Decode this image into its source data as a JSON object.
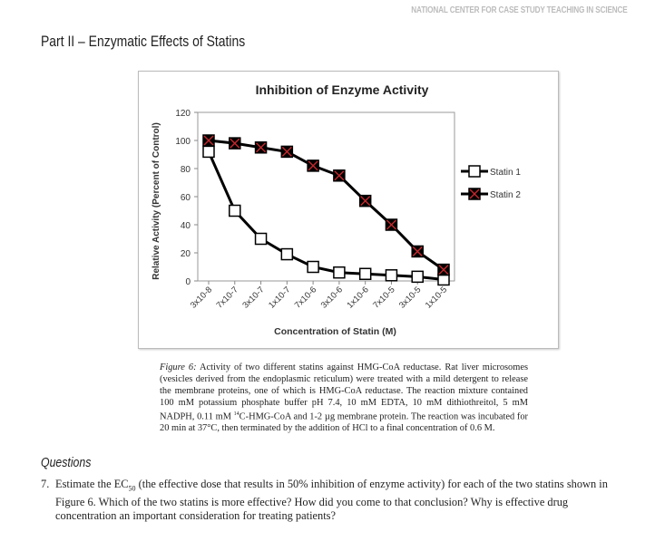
{
  "header": {
    "banner": "NATIONAL CENTER FOR CASE STUDY TEACHING IN SCIENCE",
    "title": "Part II – Enzymatic Effects of Statins"
  },
  "chart_data": {
    "type": "line",
    "title": "Inhibition of Enzyme Activity",
    "xlabel": "Concentration of Statin (M)",
    "ylabel": "Relative Activity (Percent of Control)",
    "categories": [
      "3x10-8",
      "7x10-7",
      "3x10-7",
      "1x10-7",
      "7x10-6",
      "3x10-6",
      "1x10-6",
      "7x10-5",
      "3x10-5",
      "1x10-5"
    ],
    "ylim": [
      0,
      120
    ],
    "yticks": [
      0,
      20,
      40,
      60,
      80,
      100,
      120
    ],
    "grid": false,
    "legend": "right",
    "series": [
      {
        "name": "Statin 1",
        "values": [
          92,
          50,
          30,
          19,
          10,
          6,
          5,
          4,
          3,
          1
        ],
        "marker": "open-square",
        "color": "#000000"
      },
      {
        "name": "Statin 2",
        "values": [
          100,
          98,
          95,
          92,
          82,
          75,
          57,
          40,
          21,
          8
        ],
        "marker": "x-square",
        "color": "#000000",
        "marker_accent": "#c0282d"
      }
    ]
  },
  "caption": {
    "label": "Figure 6:",
    "text": " Activity of two different statins against HMG-CoA reductase. Rat liver microsomes (vesicles derived from the endoplasmic reticulum) were treated with a mild detergent to release the membrane proteins, one of which is HMG-CoA reductase. The reaction mixture contained 100 mM potassium phosphate buffer pH 7.4, 10 mM EDTA, 10 mM dithiothreitol, 5 mM NADPH, 0.11 mM ",
    "sup": "14",
    "text2": "C-HMG-CoA and 1-2 µg membrane protein. The reaction was incubated for 20 min at 37°C, then terminated by the addition of HCl to a final concentration of 0.6 M."
  },
  "questions": {
    "heading": "Questions",
    "items": [
      {
        "num": "7.",
        "pre": "Estimate the EC",
        "sub": "50",
        "post": " (the effective dose that results in 50% inhibition of enzyme activity) for each of the two statins shown in Figure 6. Which of the two statins is more effective? How did you come to that conclusion? Why is effective drug concentration an important consideration for treating patients?"
      }
    ]
  }
}
